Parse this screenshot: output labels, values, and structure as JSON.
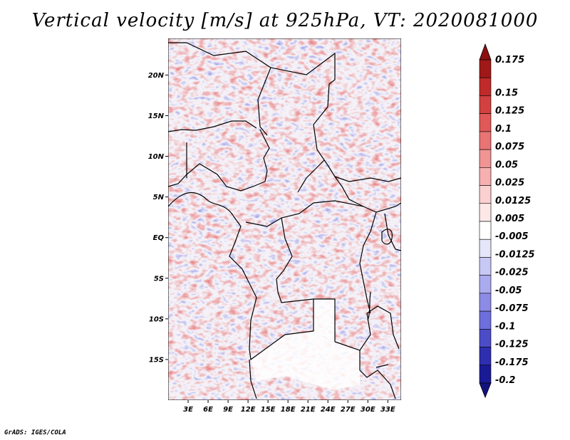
{
  "title": "Vertical velocity [m/s] at 925hPa, VT: 2020081000",
  "credit": "GrADS: IGES/COLA",
  "map": {
    "lat_labels": [
      "20N",
      "15N",
      "10N",
      "5N",
      "EQ",
      "5S",
      "10S",
      "15S"
    ],
    "lat_values": [
      20,
      15,
      10,
      5,
      0,
      -5,
      -10,
      -15
    ],
    "lon_labels": [
      "3E",
      "6E",
      "9E",
      "12E",
      "15E",
      "18E",
      "21E",
      "24E",
      "27E",
      "30E",
      "33E"
    ],
    "lon_values": [
      3,
      6,
      9,
      12,
      15,
      18,
      21,
      24,
      27,
      30,
      33
    ],
    "lon_range": [
      0,
      35
    ],
    "lat_range": [
      -20,
      24.5
    ]
  },
  "colorbar": {
    "labels": [
      "0.175",
      "0.15",
      "0.125",
      "0.1",
      "0.075",
      "0.05",
      "0.025",
      "0.0125",
      "0.005",
      "-0.005",
      "-0.0125",
      "-0.025",
      "-0.05",
      "-0.075",
      "-0.1",
      "-0.125",
      "-0.175",
      "-0.2"
    ],
    "colors": [
      "#a01818",
      "#c02a2a",
      "#d24040",
      "#e05858",
      "#e87474",
      "#f09494",
      "#f6b0b0",
      "#fad0d0",
      "#fde8e8",
      "#ffffff",
      "#e6e6fa",
      "#c8c8f4",
      "#aaaaee",
      "#8c8ce6",
      "#6e6edc",
      "#4c4cc8",
      "#2e2eb0",
      "#1a1a96"
    ],
    "top_arrow_color": "#8c1010",
    "bottom_arrow_color": "#12127e"
  }
}
